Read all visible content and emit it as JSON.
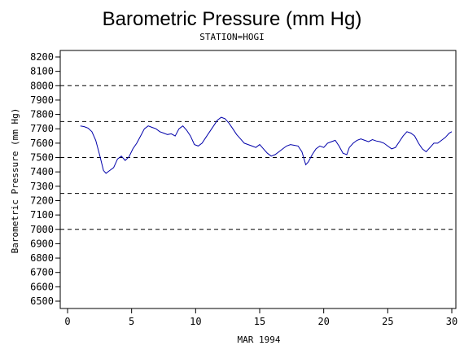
{
  "chart_data": {
    "type": "line",
    "title": "Barometric Pressure (mm Hg)",
    "subtitle": "STATION=HOGI",
    "xlabel": "MAR 1994",
    "ylabel": "Barometric Pressure (mm Hg)",
    "xlim": [
      0,
      30
    ],
    "ylim": [
      6500,
      8200
    ],
    "x_ticks": [
      0,
      5,
      10,
      15,
      20,
      25,
      30
    ],
    "y_ticks": [
      6500,
      6600,
      6700,
      6800,
      6900,
      7000,
      7100,
      7200,
      7300,
      7400,
      7500,
      7600,
      7700,
      7800,
      7900,
      8000,
      8100,
      8200
    ],
    "reference_lines": [
      7000,
      7250,
      7500,
      7750,
      8000
    ],
    "line_color": "#0000aa",
    "reference_line_color": "#000000",
    "series": [
      {
        "x": [
          1.0,
          1.3,
          1.6,
          1.9,
          2.2,
          2.5,
          2.8,
          3.0,
          3.3,
          3.6,
          3.9,
          4.2,
          4.5,
          4.8,
          5.1,
          5.4,
          5.7,
          6.0,
          6.3,
          6.6,
          6.9,
          7.2,
          7.5,
          7.8,
          8.1,
          8.4,
          8.7,
          9.0,
          9.3,
          9.6,
          9.9,
          10.2,
          10.5,
          10.8,
          11.1,
          11.4,
          11.7,
          12.0,
          12.3,
          12.6,
          12.9,
          13.2,
          13.5,
          13.8,
          14.1,
          14.4,
          14.7,
          15.0,
          15.3,
          15.6,
          15.9,
          16.2,
          16.5,
          16.8,
          17.1,
          17.4,
          17.7,
          18.0,
          18.3,
          18.6,
          18.8,
          19.1,
          19.4,
          19.7,
          20.0,
          20.3,
          20.6,
          20.9,
          21.2,
          21.5,
          21.8,
          22.0,
          22.3,
          22.6,
          22.9,
          23.2,
          23.5,
          23.8,
          24.1,
          24.4,
          24.7,
          25.0,
          25.3,
          25.6,
          25.9,
          26.2,
          26.5,
          26.8,
          27.1,
          27.4,
          27.7,
          28.0,
          28.3,
          28.6,
          28.9,
          29.2,
          29.5,
          29.8,
          30.0
        ],
        "y": [
          7720,
          7715,
          7705,
          7680,
          7620,
          7520,
          7410,
          7390,
          7410,
          7430,
          7490,
          7510,
          7480,
          7505,
          7560,
          7600,
          7650,
          7700,
          7720,
          7710,
          7700,
          7680,
          7670,
          7660,
          7665,
          7650,
          7700,
          7720,
          7690,
          7650,
          7590,
          7580,
          7600,
          7640,
          7680,
          7720,
          7760,
          7780,
          7770,
          7740,
          7700,
          7660,
          7630,
          7600,
          7590,
          7580,
          7570,
          7590,
          7560,
          7530,
          7510,
          7520,
          7540,
          7560,
          7580,
          7590,
          7585,
          7580,
          7540,
          7450,
          7470,
          7520,
          7560,
          7580,
          7570,
          7600,
          7610,
          7620,
          7580,
          7530,
          7520,
          7570,
          7600,
          7620,
          7630,
          7620,
          7610,
          7625,
          7615,
          7610,
          7600,
          7580,
          7560,
          7570,
          7610,
          7650,
          7680,
          7670,
          7650,
          7600,
          7560,
          7540,
          7570,
          7600,
          7600,
          7620,
          7640,
          7670,
          7680
        ]
      }
    ]
  }
}
